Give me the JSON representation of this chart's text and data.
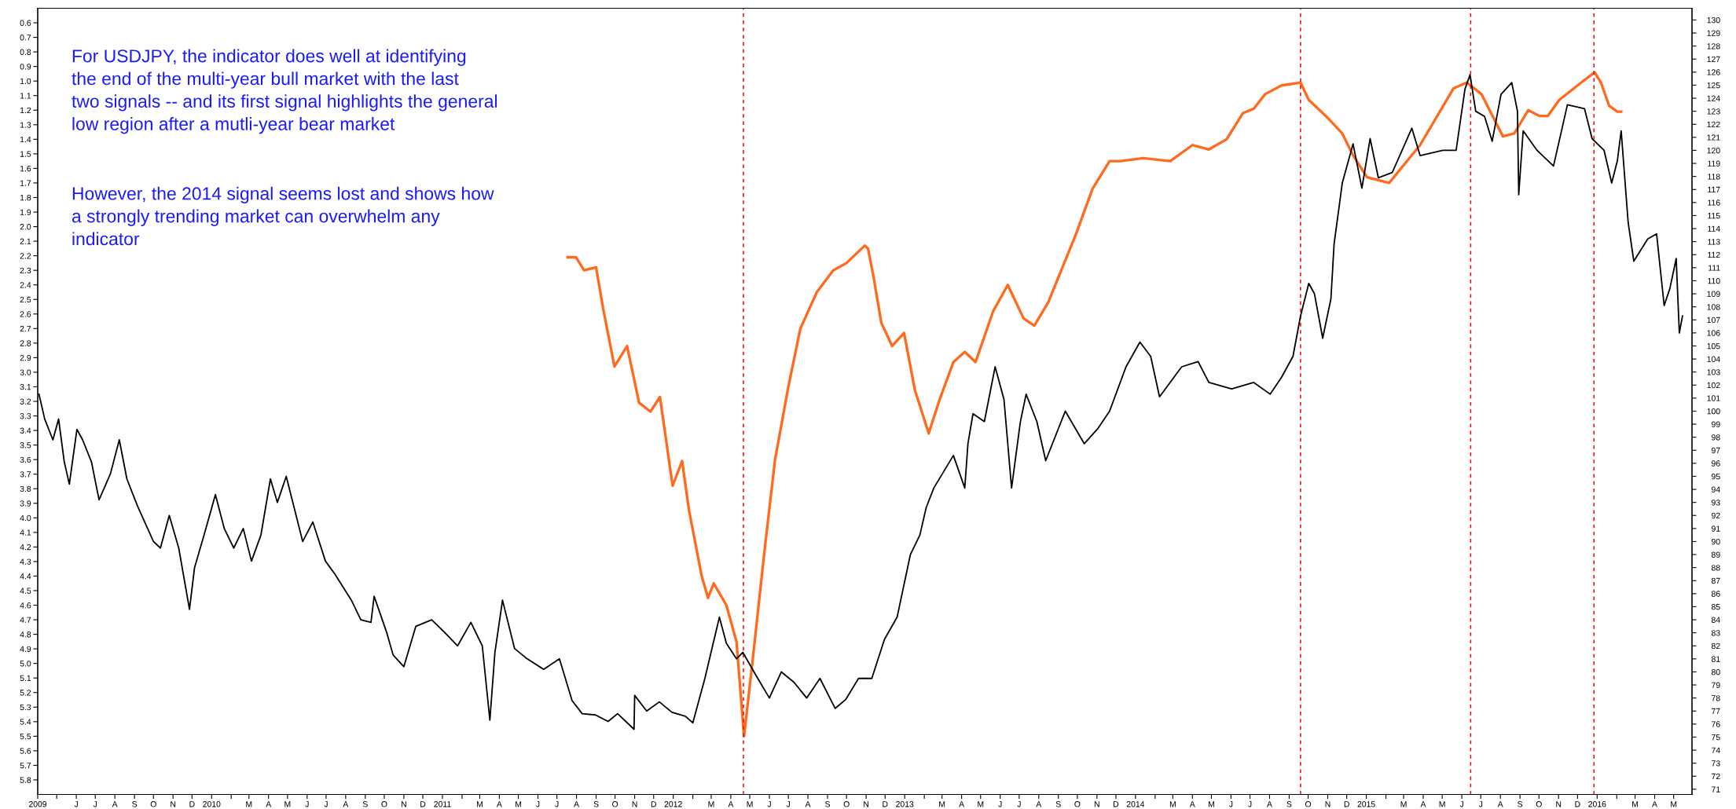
{
  "chart_data": {
    "type": "line",
    "annotations": [
      "For USDJPY, the indicator does well at identifying\nthe end of the multi-year bull market with the last\ntwo signals -- and its first signal highlights the general\nlow region after a mutli-year bear market",
      "However, the 2014 signal seems lost and shows how\na strongly trending market can overwhelm any\nindicator"
    ],
    "xlim": [
      "2009-04-01",
      "2016-05-30"
    ],
    "xticks": [
      {
        "value": "2009-04",
        "label": "2009"
      },
      {
        "value": "2009-05",
        "label": null
      },
      {
        "value": "2009-06",
        "label": "J"
      },
      {
        "value": "2009-07",
        "label": "J"
      },
      {
        "value": "2009-08",
        "label": "A"
      },
      {
        "value": "2009-09",
        "label": "S"
      },
      {
        "value": "2009-10",
        "label": "O"
      },
      {
        "value": "2009-11",
        "label": "N"
      },
      {
        "value": "2009-12",
        "label": "D"
      },
      {
        "value": "2010-01",
        "label": "2010"
      },
      {
        "value": "2010-02",
        "label": null
      },
      {
        "value": "2010-03",
        "label": "M"
      },
      {
        "value": "2010-04",
        "label": "A"
      },
      {
        "value": "2010-05",
        "label": "M"
      },
      {
        "value": "2010-06",
        "label": "J"
      },
      {
        "value": "2010-07",
        "label": "J"
      },
      {
        "value": "2010-08",
        "label": "A"
      },
      {
        "value": "2010-09",
        "label": "S"
      },
      {
        "value": "2010-10",
        "label": "O"
      },
      {
        "value": "2010-11",
        "label": "N"
      },
      {
        "value": "2010-12",
        "label": "D"
      },
      {
        "value": "2011-01",
        "label": "2011"
      },
      {
        "value": "2011-02",
        "label": null
      },
      {
        "value": "2011-03",
        "label": "M"
      },
      {
        "value": "2011-04",
        "label": "A"
      },
      {
        "value": "2011-05",
        "label": "M"
      },
      {
        "value": "2011-06",
        "label": "J"
      },
      {
        "value": "2011-07",
        "label": "J"
      },
      {
        "value": "2011-08",
        "label": "A"
      },
      {
        "value": "2011-09",
        "label": "S"
      },
      {
        "value": "2011-10",
        "label": "O"
      },
      {
        "value": "2011-11",
        "label": "N"
      },
      {
        "value": "2011-12",
        "label": "D"
      },
      {
        "value": "2012-01",
        "label": "2012"
      },
      {
        "value": "2012-02",
        "label": null
      },
      {
        "value": "2012-03",
        "label": "M"
      },
      {
        "value": "2012-04",
        "label": "A"
      },
      {
        "value": "2012-05",
        "label": "M"
      },
      {
        "value": "2012-06",
        "label": "J"
      },
      {
        "value": "2012-07",
        "label": "J"
      },
      {
        "value": "2012-08",
        "label": "A"
      },
      {
        "value": "2012-09",
        "label": "S"
      },
      {
        "value": "2012-10",
        "label": "O"
      },
      {
        "value": "2012-11",
        "label": "N"
      },
      {
        "value": "2012-12",
        "label": "D"
      },
      {
        "value": "2013-01",
        "label": "2013"
      },
      {
        "value": "2013-02",
        "label": null
      },
      {
        "value": "2013-03",
        "label": "M"
      },
      {
        "value": "2013-04",
        "label": "A"
      },
      {
        "value": "2013-05",
        "label": "M"
      },
      {
        "value": "2013-06",
        "label": "J"
      },
      {
        "value": "2013-07",
        "label": "J"
      },
      {
        "value": "2013-08",
        "label": "A"
      },
      {
        "value": "2013-09",
        "label": "S"
      },
      {
        "value": "2013-10",
        "label": "O"
      },
      {
        "value": "2013-11",
        "label": "N"
      },
      {
        "value": "2013-12",
        "label": "D"
      },
      {
        "value": "2014-01",
        "label": "2014"
      },
      {
        "value": "2014-02",
        "label": null
      },
      {
        "value": "2014-03",
        "label": "M"
      },
      {
        "value": "2014-04",
        "label": "A"
      },
      {
        "value": "2014-05",
        "label": "M"
      },
      {
        "value": "2014-06",
        "label": "J"
      },
      {
        "value": "2014-07",
        "label": "J"
      },
      {
        "value": "2014-08",
        "label": "A"
      },
      {
        "value": "2014-09",
        "label": "S"
      },
      {
        "value": "2014-10",
        "label": "O"
      },
      {
        "value": "2014-11",
        "label": "N"
      },
      {
        "value": "2014-12",
        "label": "D"
      },
      {
        "value": "2015-01",
        "label": "2015"
      },
      {
        "value": "2015-02",
        "label": null
      },
      {
        "value": "2015-03",
        "label": "M"
      },
      {
        "value": "2015-04",
        "label": "A"
      },
      {
        "value": "2015-05",
        "label": "M"
      },
      {
        "value": "2015-06",
        "label": "J"
      },
      {
        "value": "2015-07",
        "label": "J"
      },
      {
        "value": "2015-08",
        "label": "A"
      },
      {
        "value": "2015-09",
        "label": "S"
      },
      {
        "value": "2015-10",
        "label": "O"
      },
      {
        "value": "2015-11",
        "label": "N"
      },
      {
        "value": "2015-12",
        "label": "D"
      },
      {
        "value": "2016-01",
        "label": "2016"
      },
      {
        "value": "2016-02",
        "label": null
      },
      {
        "value": "2016-03",
        "label": "M"
      },
      {
        "value": "2016-04",
        "label": "A"
      },
      {
        "value": "2016-05",
        "label": "M"
      }
    ],
    "ylim": [
      5.9,
      0.5
    ],
    "yticks": [
      0.6,
      0.7,
      0.8,
      0.9,
      {
        "value": 1,
        "label": "1.0"
      },
      1.1,
      1.2,
      1.3,
      1.4,
      1.5,
      1.6,
      1.7,
      1.8,
      1.9,
      {
        "value": 2,
        "label": "2.0"
      },
      2.1,
      2.2,
      2.3,
      2.4,
      2.5,
      2.6,
      2.7,
      2.8,
      2.9,
      {
        "value": 3,
        "label": "3.0"
      },
      3.1,
      3.2,
      3.3,
      3.4,
      3.5,
      3.6,
      3.7,
      3.8,
      3.9,
      {
        "value": 4,
        "label": "4.0"
      },
      4.1,
      4.2,
      4.3,
      4.4,
      4.5,
      4.6,
      4.7,
      4.8,
      4.9,
      {
        "value": 5,
        "label": "5.0"
      },
      5.1,
      5.2,
      5.3,
      5.4,
      5.5,
      5.6,
      5.7,
      5.8
    ],
    "y2lim": [
      70.6,
      130.9
    ],
    "y2ticks": [
      71,
      72,
      73,
      74,
      75,
      76,
      77,
      78,
      79,
      80,
      81,
      82,
      83,
      84,
      85,
      86,
      87,
      88,
      89,
      90,
      91,
      92,
      93,
      94,
      95,
      96,
      97,
      98,
      99,
      100,
      101,
      102,
      103,
      104,
      105,
      106,
      107,
      108,
      109,
      110,
      111,
      112,
      113,
      114,
      115,
      116,
      117,
      118,
      119,
      120,
      121,
      122,
      123,
      124,
      125,
      126,
      127,
      128,
      129,
      130
    ],
    "series": [
      {
        "color": "#000000",
        "axis": "y2",
        "x": [
          "2009-04-03",
          "2009-04-12",
          "2009-04-25",
          "2009-05-04",
          "2009-05-13",
          "2009-05-21",
          "2009-06-02",
          "2009-06-11",
          "2009-06-25",
          "2009-07-07",
          "2009-07-25",
          "2009-08-08",
          "2009-08-20",
          "2009-09-06",
          "2009-10-01",
          "2009-10-12",
          "2009-10-26",
          "2009-11-10",
          "2009-11-27",
          "2009-12-05",
          "2009-12-20",
          "2010-01-07",
          "2010-01-21",
          "2010-02-05",
          "2010-02-20",
          "2010-03-05",
          "2010-03-20",
          "2010-04-04",
          "2010-04-15",
          "2010-04-29",
          "2010-05-25",
          "2010-06-10",
          "2010-06-30",
          "2010-07-15",
          "2010-08-10",
          "2010-08-25",
          "2010-09-10",
          "2010-09-15",
          "2010-10-05",
          "2010-10-15",
          "2010-11-01",
          "2010-11-20",
          "2010-12-15",
          "2011-01-05",
          "2011-01-25",
          "2011-02-15",
          "2011-03-05",
          "2011-03-17",
          "2011-03-25",
          "2011-04-06",
          "2011-04-25",
          "2011-05-15",
          "2011-06-10",
          "2011-07-05",
          "2011-07-25",
          "2011-08-10",
          "2011-08-31",
          "2011-09-20",
          "2011-10-05",
          "2011-10-31",
          "2011-11-01",
          "2011-11-20",
          "2011-12-10",
          "2011-12-30",
          "2012-01-20",
          "2012-02-01",
          "2012-02-20",
          "2012-03-14",
          "2012-03-25",
          "2012-04-10",
          "2012-04-20",
          "2012-05-10",
          "2012-06-01",
          "2012-06-20",
          "2012-07-10",
          "2012-07-30",
          "2012-08-20",
          "2012-09-13",
          "2012-09-30",
          "2012-10-20",
          "2012-11-10",
          "2012-11-30",
          "2012-12-20",
          "2013-01-10",
          "2013-01-25",
          "2013-02-04",
          "2013-02-16",
          "2013-03-19",
          "2013-04-06",
          "2013-04-11",
          "2013-04-19",
          "2013-05-07",
          "2013-05-24",
          "2013-06-07",
          "2013-06-19",
          "2013-07-03",
          "2013-07-12",
          "2013-07-29",
          "2013-08-12",
          "2013-09-12",
          "2013-10-12",
          "2013-11-03",
          "2013-11-21",
          "2013-12-17",
          "2014-01-08",
          "2014-01-25",
          "2014-02-08",
          "2014-03-15",
          "2014-04-10",
          "2014-04-27",
          "2014-06-02",
          "2014-07-07",
          "2014-08-02",
          "2014-08-20",
          "2014-09-07",
          "2014-09-19",
          "2014-10-02",
          "2014-10-11",
          "2014-10-24",
          "2014-11-06",
          "2014-11-11",
          "2014-11-24",
          "2014-12-11",
          "2014-12-25",
          "2015-01-07",
          "2015-01-20",
          "2015-02-11",
          "2015-03-14",
          "2015-03-27",
          "2015-05-02",
          "2015-05-23",
          "2015-06-06",
          "2015-06-14",
          "2015-06-23",
          "2015-07-07",
          "2015-07-19",
          "2015-08-02",
          "2015-08-19",
          "2015-08-28",
          "2015-08-30",
          "2015-09-06",
          "2015-09-28",
          "2015-10-24",
          "2015-11-15",
          "2015-12-12",
          "2015-12-24",
          "2016-01-12",
          "2016-01-24",
          "2016-02-02",
          "2016-02-08",
          "2016-02-19",
          "2016-02-28",
          "2016-03-21",
          "2016-04-04",
          "2016-04-16",
          "2016-04-25",
          "2016-05-05",
          "2016-05-10",
          "2016-05-15"
        ],
        "values": [
          101.3,
          99.4,
          97.8,
          99.4,
          96.1,
          94.4,
          98.6,
          97.8,
          96.1,
          93.2,
          95.2,
          97.8,
          94.8,
          92.7,
          90.0,
          89.5,
          92.0,
          89.5,
          84.8,
          88.0,
          90.5,
          93.6,
          91.0,
          89.5,
          91.0,
          88.5,
          90.5,
          94.8,
          93.0,
          95.0,
          90.0,
          91.5,
          88.5,
          87.5,
          85.5,
          84.0,
          83.8,
          85.8,
          83.0,
          81.3,
          80.4,
          83.5,
          84.0,
          83.0,
          82.0,
          83.8,
          82.0,
          76.3,
          81.5,
          85.5,
          81.8,
          81.0,
          80.2,
          81.0,
          77.8,
          76.8,
          76.7,
          76.2,
          76.8,
          75.6,
          78.2,
          77.0,
          77.7,
          76.9,
          76.6,
          76.1,
          79.5,
          84.2,
          82.2,
          81.0,
          81.5,
          79.8,
          78.0,
          80.0,
          79.2,
          78.0,
          79.5,
          77.2,
          77.9,
          79.5,
          79.5,
          82.5,
          84.2,
          89.0,
          90.5,
          92.6,
          94.1,
          96.6,
          94.1,
          97.5,
          99.8,
          99.2,
          103.4,
          100.9,
          94.1,
          99.2,
          101.3,
          99.2,
          96.2,
          100.0,
          97.5,
          98.7,
          100.0,
          103.4,
          105.3,
          104.2,
          101.1,
          103.4,
          103.8,
          102.2,
          101.7,
          102.2,
          101.3,
          102.6,
          104.2,
          107.3,
          109.8,
          109.0,
          105.6,
          108.6,
          112.8,
          117.5,
          120.5,
          117.1,
          120.9,
          117.9,
          118.3,
          121.7,
          119.6,
          120.0,
          120.0,
          124.7,
          125.8,
          123.0,
          122.6,
          120.7,
          124.3,
          125.2,
          123.0,
          116.6,
          121.5,
          120.0,
          118.8,
          123.5,
          123.2,
          120.9,
          120.0,
          117.5,
          119.2,
          121.5,
          114.5,
          111.5,
          113.2,
          113.6,
          108.1,
          109.4,
          111.7,
          106.0,
          107.3
        ]
      },
      {
        "color": "#ff6a1f",
        "x": [
          "2011-07-18",
          "2011-07-31",
          "2011-08-13",
          "2011-09-01",
          "2011-09-12",
          "2011-09-30",
          "2011-10-20",
          "2011-11-08",
          "2011-11-26",
          "2011-12-11",
          "2011-12-31",
          "2012-01-15",
          "2012-01-26",
          "2012-02-15",
          "2012-02-25",
          "2012-03-05",
          "2012-03-25",
          "2012-04-10",
          "2012-04-22",
          "2012-05-05",
          "2012-05-25",
          "2012-06-10",
          "2012-07-01",
          "2012-07-20",
          "2012-08-15",
          "2012-09-10",
          "2012-10-01",
          "2012-10-30",
          "2012-11-04",
          "2012-11-13",
          "2012-11-25",
          "2012-12-12",
          "2012-12-31",
          "2013-01-17",
          "2013-02-08",
          "2013-02-25",
          "2013-03-19",
          "2013-04-06",
          "2013-04-23",
          "2013-05-21",
          "2013-06-13",
          "2013-07-08",
          "2013-07-25",
          "2013-08-16",
          "2013-09-29",
          "2013-10-25",
          "2013-11-21",
          "2013-12-08",
          "2014-01-13",
          "2014-02-25",
          "2014-04-01",
          "2014-04-27",
          "2014-05-25",
          "2014-06-20",
          "2014-07-07",
          "2014-07-25",
          "2014-08-20",
          "2014-09-19",
          "2014-10-02",
          "2014-10-29",
          "2014-11-24",
          "2014-12-11",
          "2015-01-02",
          "2015-02-06",
          "2015-03-27",
          "2015-05-19",
          "2015-06-09",
          "2015-07-02",
          "2015-08-05",
          "2015-08-23",
          "2015-09-14",
          "2015-10-02",
          "2015-10-15",
          "2015-11-02",
          "2015-12-07",
          "2015-12-28",
          "2016-01-07",
          "2016-01-20",
          "2016-02-02",
          "2016-02-08"
        ],
        "values": [
          2.21,
          2.21,
          2.3,
          2.28,
          2.56,
          2.96,
          2.82,
          3.21,
          3.27,
          3.17,
          3.78,
          3.61,
          3.95,
          4.4,
          4.55,
          4.45,
          4.6,
          4.85,
          5.5,
          5.0,
          4.2,
          3.6,
          3.1,
          2.7,
          2.45,
          2.3,
          2.25,
          2.13,
          2.15,
          2.35,
          2.66,
          2.82,
          2.73,
          3.12,
          3.42,
          3.19,
          2.93,
          2.86,
          2.93,
          2.58,
          2.4,
          2.63,
          2.68,
          2.52,
          2.05,
          1.74,
          1.55,
          1.55,
          1.53,
          1.55,
          1.44,
          1.47,
          1.4,
          1.22,
          1.19,
          1.09,
          1.03,
          1.01,
          1.13,
          1.24,
          1.36,
          1.51,
          1.66,
          1.7,
          1.44,
          1.05,
          1.01,
          1.09,
          1.38,
          1.36,
          1.2,
          1.24,
          1.24,
          1.13,
          1.01,
          0.94,
          1.01,
          1.17,
          1.21,
          1.21
        ]
      }
    ],
    "ref_lines": [
      {
        "axis": "x",
        "value": "2012-04-21",
        "color": "#ff0000",
        "line_style": "dashed"
      },
      {
        "axis": "x",
        "value": "2014-09-19",
        "color": "#ff0000",
        "line_style": "dashed"
      },
      {
        "axis": "x",
        "value": "2015-06-15",
        "color": "#ff0000",
        "line_style": "dashed"
      },
      {
        "axis": "x",
        "value": "2015-12-27",
        "color": "#ff0000",
        "line_style": "dashed"
      }
    ]
  }
}
